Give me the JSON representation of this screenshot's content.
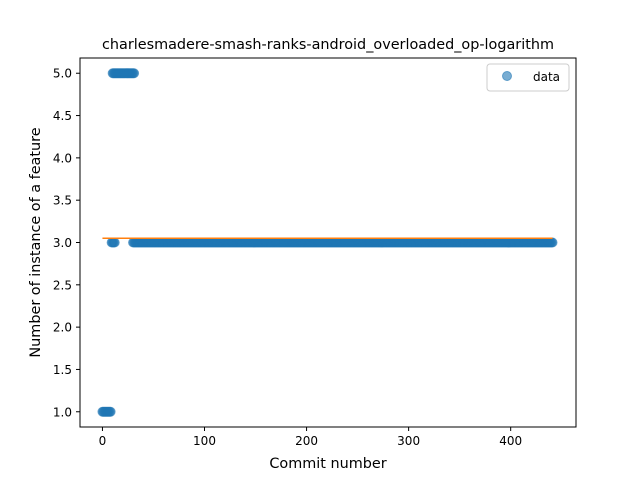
{
  "chart_data": {
    "type": "scatter",
    "title": "charlesmadere-smash-ranks-android_overloaded_op-logarithm",
    "xlabel": "Commit number",
    "ylabel": "Number of instance of a feature",
    "xlim": [
      -22,
      464
    ],
    "ylim": [
      0.82,
      5.18
    ],
    "xticks": [
      0,
      100,
      200,
      300,
      400
    ],
    "yticks": [
      1.0,
      1.5,
      2.0,
      2.5,
      3.0,
      3.5,
      4.0,
      4.5,
      5.0
    ],
    "ytick_labels": [
      "1.0",
      "1.5",
      "2.0",
      "2.5",
      "3.0",
      "3.5",
      "4.0",
      "4.5",
      "5.0"
    ],
    "legend": {
      "placement": "top-right",
      "entries": [
        "data"
      ]
    },
    "grid": false,
    "series": [
      {
        "name": "data",
        "color": "#1f77b4",
        "segments": [
          {
            "x_start": 0,
            "x_end": 8,
            "y": 1.0
          },
          {
            "x_start": 9,
            "x_end": 12,
            "y": 3.0
          },
          {
            "x_start": 10,
            "x_end": 31,
            "y": 5.0
          },
          {
            "x_start": 30,
            "x_end": 441,
            "y": 3.0
          }
        ]
      }
    ],
    "fit_line": {
      "color": "#ff7f0e",
      "x": [
        0,
        441
      ],
      "y": [
        3.05,
        3.05
      ]
    }
  }
}
